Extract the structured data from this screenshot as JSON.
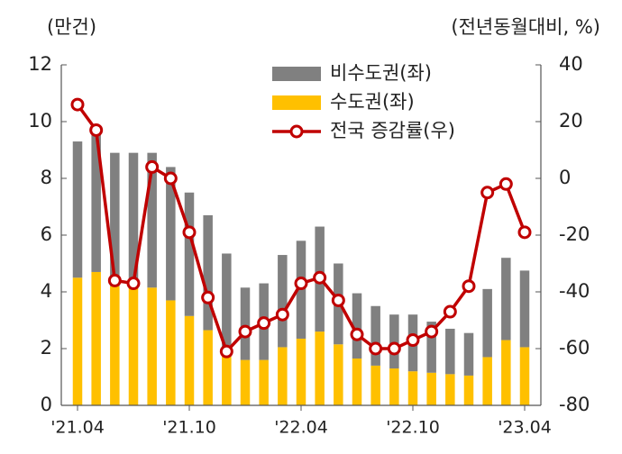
{
  "chart_data": {
    "type": "bar",
    "subtype": "stacked-bar-with-line",
    "left_axis_unit": "(만건)",
    "right_axis_unit": "(전년동월대비, %)",
    "ylim_left": [
      0,
      12
    ],
    "ylim_right": [
      -80,
      40
    ],
    "yticks_left": [
      "0",
      "2",
      "4",
      "6",
      "8",
      "10",
      "12"
    ],
    "yticks_right": [
      "-80",
      "-60",
      "-40",
      "-20",
      "0",
      "20",
      "40"
    ],
    "x_tick_labels": [
      {
        "index": 0,
        "label": "'21.04"
      },
      {
        "index": 6,
        "label": "'21.10"
      },
      {
        "index": 12,
        "label": "'22.04"
      },
      {
        "index": 18,
        "label": "'22.10"
      },
      {
        "index": 24,
        "label": "'23.04"
      }
    ],
    "categories": [
      "21.04",
      "21.05",
      "21.06",
      "21.07",
      "21.08",
      "21.09",
      "21.10",
      "21.11",
      "21.12",
      "22.01",
      "22.02",
      "22.03",
      "22.04",
      "22.05",
      "22.06",
      "22.07",
      "22.08",
      "22.09",
      "22.10",
      "22.11",
      "22.12",
      "23.01",
      "23.02",
      "23.03",
      "23.04"
    ],
    "legend_position": "top-right",
    "grid": false,
    "series": [
      {
        "name": "수도권(좌)",
        "type": "bar",
        "axis": "left",
        "color": "#FFC000",
        "values": [
          4.5,
          4.7,
          4.2,
          4.2,
          4.15,
          3.7,
          3.15,
          2.65,
          1.8,
          1.6,
          1.6,
          2.05,
          2.35,
          2.6,
          2.15,
          1.65,
          1.4,
          1.3,
          1.2,
          1.15,
          1.1,
          1.05,
          1.7,
          2.3,
          2.05
        ]
      },
      {
        "name": "비수도권(좌)",
        "type": "bar",
        "axis": "left",
        "color": "#808080",
        "values": [
          4.8,
          5.0,
          4.7,
          4.7,
          4.75,
          4.7,
          4.35,
          4.05,
          3.55,
          2.55,
          2.7,
          3.25,
          3.45,
          3.7,
          2.85,
          2.3,
          2.1,
          1.9,
          2.0,
          1.8,
          1.6,
          1.5,
          2.4,
          2.9,
          2.7
        ]
      },
      {
        "name": "전국 증감률(우)",
        "type": "line",
        "axis": "right",
        "color": "#C00000",
        "values": [
          26,
          17,
          -36,
          -37,
          4,
          0,
          -19,
          -42,
          -61,
          -54,
          -51,
          -48,
          -37,
          -35,
          -43,
          -55,
          -60,
          -60,
          -57,
          -54,
          -47,
          -38,
          -5,
          -2,
          -19
        ]
      }
    ]
  }
}
